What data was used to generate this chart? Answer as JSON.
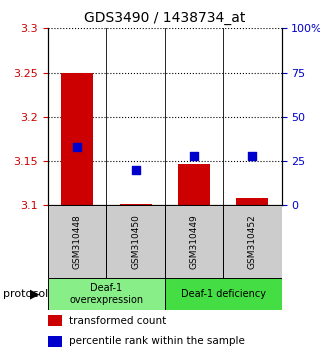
{
  "title": "GDS3490 / 1438734_at",
  "samples": [
    "GSM310448",
    "GSM310450",
    "GSM310449",
    "GSM310452"
  ],
  "transformed_counts": [
    3.25,
    3.101,
    3.147,
    3.108
  ],
  "percentile_ranks": [
    33,
    20,
    28,
    28
  ],
  "ylim": [
    3.1,
    3.3
  ],
  "yticks": [
    3.1,
    3.15,
    3.2,
    3.25,
    3.3
  ],
  "ytick_labels": [
    "3.1",
    "3.15",
    "3.2",
    "3.25",
    "3.3"
  ],
  "right_yticks": [
    0,
    25,
    50,
    75,
    100
  ],
  "right_ytick_labels": [
    "0",
    "25",
    "50",
    "75",
    "100%"
  ],
  "bar_color": "#cc0000",
  "dot_color": "#0000cc",
  "bar_bottom": 3.1,
  "groups": [
    {
      "label": "Deaf-1\noverexpression",
      "samples": [
        0,
        1
      ],
      "color": "#88ee88"
    },
    {
      "label": "Deaf-1 deficiency",
      "samples": [
        2,
        3
      ],
      "color": "#44dd44"
    }
  ],
  "sample_box_color": "#cccccc",
  "protocol_label": "protocol",
  "legend_items": [
    {
      "color": "#cc0000",
      "label": "transformed count"
    },
    {
      "color": "#0000cc",
      "label": "percentile rank within the sample"
    }
  ],
  "grid_linestyle": "dotted",
  "bar_width": 0.55,
  "dot_size": 30,
  "title_fontsize": 10,
  "tick_fontsize": 8,
  "sample_fontsize": 6.5,
  "legend_fontsize": 7.5
}
